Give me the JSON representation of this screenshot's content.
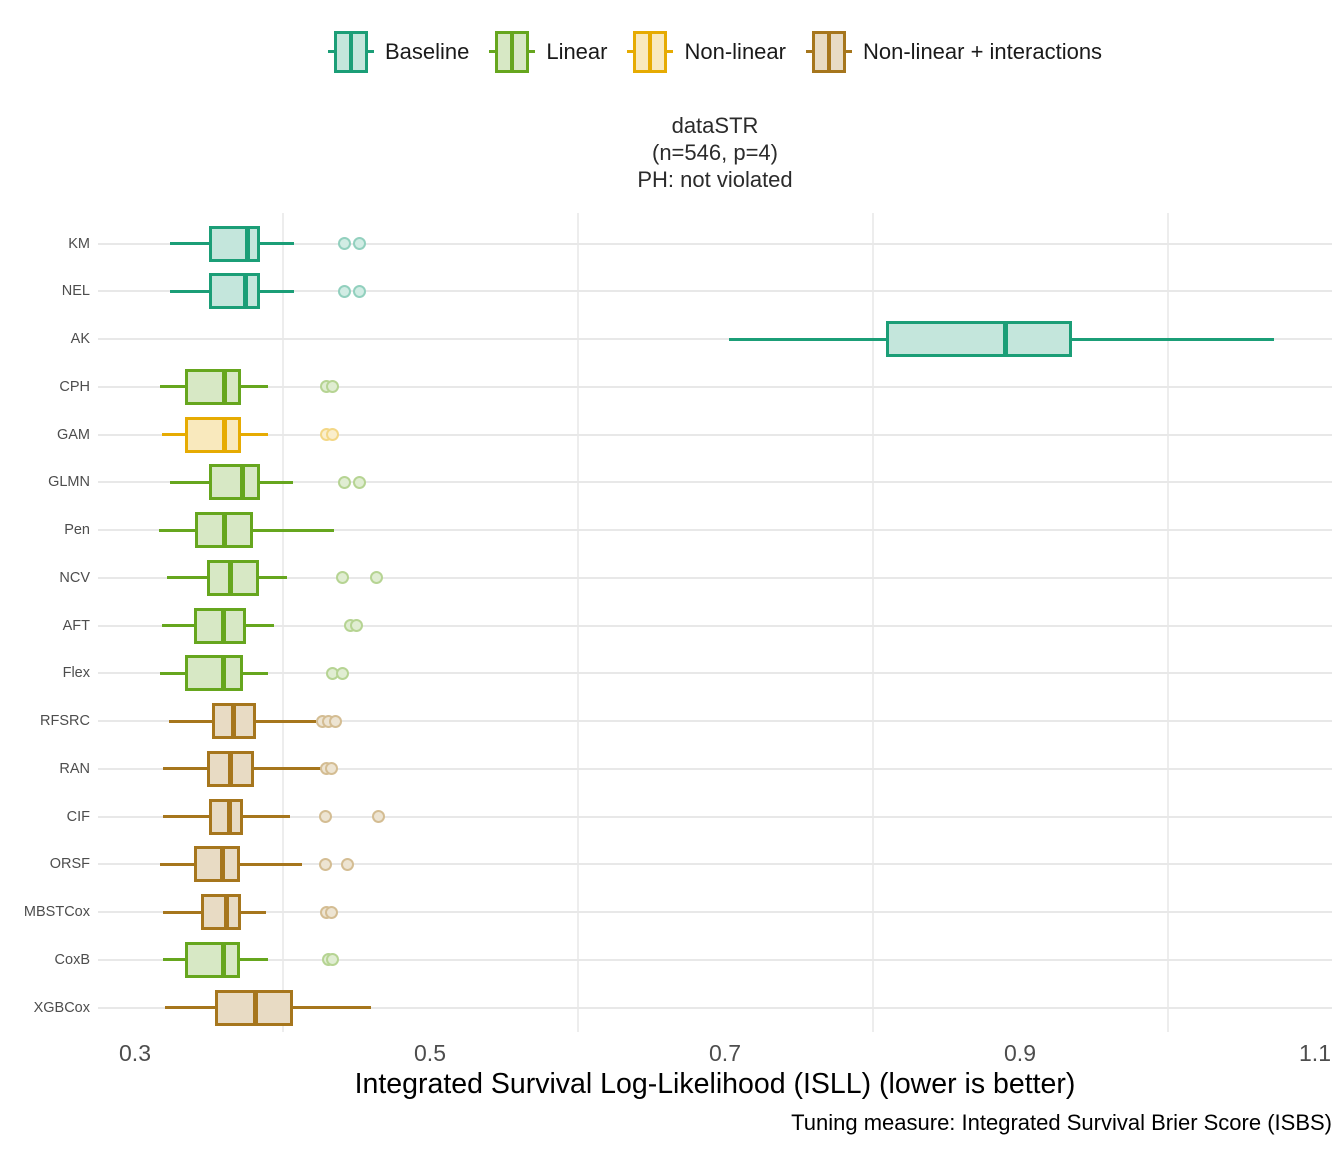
{
  "legend": {
    "items": [
      {
        "label": "Baseline",
        "color": "#1B9E77"
      },
      {
        "label": "Linear",
        "color": "#66A61E"
      },
      {
        "label": "Non-linear",
        "color": "#E6AB02"
      },
      {
        "label": "Non-linear + interactions",
        "color": "#A6761D"
      }
    ]
  },
  "title": {
    "lines": [
      "dataSTR",
      "(n=546, p=4)",
      "PH: not violated"
    ]
  },
  "chart_data": {
    "type": "boxplot",
    "orientation": "horizontal",
    "title": "dataSTR (n=546, p=4) PH: not violated",
    "xlabel": "Integrated Survival Log-Likelihood (ISLL) (lower is better)",
    "caption": "Tuning measure: Integrated Survival Brier Score (ISBS)",
    "xlim": [
      0.28,
      1.114
    ],
    "x_ticks": [
      0.3,
      0.5,
      0.7,
      0.9,
      1.1
    ],
    "x_tick_labels": [
      "0.3",
      "0.5",
      "0.7",
      "0.9",
      "1.1"
    ],
    "x_minor_gridlines": [
      0.4,
      0.6,
      0.8,
      1.0
    ],
    "grid": "minor-x-and-major-y",
    "legend_position": "top",
    "groups": {
      "Baseline": "#1B9E77",
      "Linear": "#66A61E",
      "Non-linear": "#E6AB02",
      "Non-linear + interactions": "#A6761D"
    },
    "rows": [
      {
        "label": "KM",
        "group": "Baseline",
        "whisker_lo": 0.324,
        "q1": 0.35,
        "median": 0.376,
        "q3": 0.385,
        "whisker_hi": 0.408,
        "outliers": [
          0.442,
          0.452
        ]
      },
      {
        "label": "NEL",
        "group": "Baseline",
        "whisker_lo": 0.324,
        "q1": 0.35,
        "median": 0.375,
        "q3": 0.385,
        "whisker_hi": 0.408,
        "outliers": [
          0.442,
          0.452
        ]
      },
      {
        "label": "AK",
        "group": "Baseline",
        "whisker_lo": 0.703,
        "q1": 0.809,
        "median": 0.89,
        "q3": 0.935,
        "whisker_hi": 1.072,
        "outliers": []
      },
      {
        "label": "CPH",
        "group": "Linear",
        "whisker_lo": 0.317,
        "q1": 0.334,
        "median": 0.361,
        "q3": 0.372,
        "whisker_hi": 0.39,
        "outliers": [
          0.43,
          0.434
        ]
      },
      {
        "label": "GAM",
        "group": "Non-linear",
        "whisker_lo": 0.318,
        "q1": 0.334,
        "median": 0.361,
        "q3": 0.372,
        "whisker_hi": 0.39,
        "outliers": [
          0.43,
          0.434
        ]
      },
      {
        "label": "GLMN",
        "group": "Linear",
        "whisker_lo": 0.324,
        "q1": 0.35,
        "median": 0.373,
        "q3": 0.385,
        "whisker_hi": 0.407,
        "outliers": [
          0.442,
          0.452
        ]
      },
      {
        "label": "Pen",
        "group": "Linear",
        "whisker_lo": 0.316,
        "q1": 0.341,
        "median": 0.361,
        "q3": 0.38,
        "whisker_hi": 0.435,
        "outliers": []
      },
      {
        "label": "NCV",
        "group": "Linear",
        "whisker_lo": 0.322,
        "q1": 0.349,
        "median": 0.365,
        "q3": 0.384,
        "whisker_hi": 0.403,
        "outliers": [
          0.441,
          0.464
        ]
      },
      {
        "label": "AFT",
        "group": "Linear",
        "whisker_lo": 0.318,
        "q1": 0.34,
        "median": 0.36,
        "q3": 0.375,
        "whisker_hi": 0.394,
        "outliers": [
          0.446,
          0.45
        ]
      },
      {
        "label": "Flex",
        "group": "Linear",
        "whisker_lo": 0.317,
        "q1": 0.334,
        "median": 0.36,
        "q3": 0.373,
        "whisker_hi": 0.39,
        "outliers": [
          0.434,
          0.441
        ]
      },
      {
        "label": "RFSRC",
        "group": "Non-linear + interactions",
        "whisker_lo": 0.323,
        "q1": 0.352,
        "median": 0.367,
        "q3": 0.382,
        "whisker_hi": 0.423,
        "outliers": [
          0.427,
          0.431,
          0.436
        ]
      },
      {
        "label": "RAN",
        "group": "Non-linear + interactions",
        "whisker_lo": 0.319,
        "q1": 0.349,
        "median": 0.365,
        "q3": 0.381,
        "whisker_hi": 0.427,
        "outliers": [
          0.43,
          0.433
        ]
      },
      {
        "label": "CIF",
        "group": "Non-linear + interactions",
        "whisker_lo": 0.319,
        "q1": 0.35,
        "median": 0.364,
        "q3": 0.373,
        "whisker_hi": 0.405,
        "outliers": [
          0.429,
          0.465
        ]
      },
      {
        "label": "ORSF",
        "group": "Non-linear + interactions",
        "whisker_lo": 0.317,
        "q1": 0.34,
        "median": 0.359,
        "q3": 0.371,
        "whisker_hi": 0.413,
        "outliers": [
          0.429,
          0.444
        ]
      },
      {
        "label": "MBSTCox",
        "group": "Non-linear + interactions",
        "whisker_lo": 0.319,
        "q1": 0.345,
        "median": 0.362,
        "q3": 0.372,
        "whisker_hi": 0.389,
        "outliers": [
          0.43,
          0.433
        ]
      },
      {
        "label": "CoxB",
        "group": "Linear",
        "whisker_lo": 0.319,
        "q1": 0.334,
        "median": 0.36,
        "q3": 0.371,
        "whisker_hi": 0.39,
        "outliers": [
          0.431,
          0.434
        ]
      },
      {
        "label": "XGBCox",
        "group": "Non-linear + interactions",
        "whisker_lo": 0.32,
        "q1": 0.354,
        "median": 0.382,
        "q3": 0.407,
        "whisker_hi": 0.46,
        "outliers": []
      }
    ]
  }
}
